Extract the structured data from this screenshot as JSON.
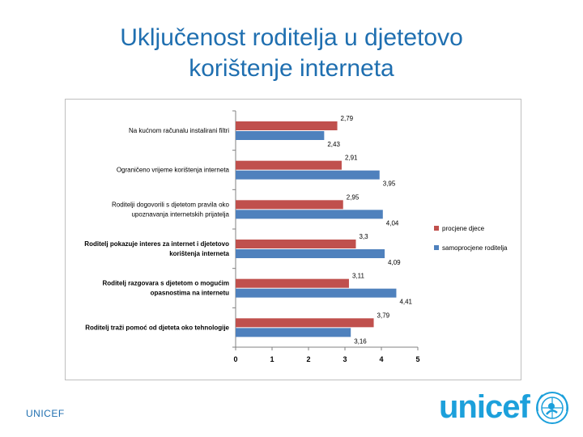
{
  "slide": {
    "title_line1": "Uključenost roditelja u djetetovo",
    "title_line2": "korištenje interneta",
    "footer": "UNICEF",
    "logo_text": "unicef"
  },
  "colors": {
    "title": "#1f6fb0",
    "series_children": "#c0504d",
    "series_parents": "#4f81bd",
    "logo": "#1ca0db"
  },
  "icons": {
    "logo_emblem": "unicef-emblem-icon"
  },
  "chart_data": {
    "type": "bar",
    "orientation": "horizontal",
    "categories": [
      [
        "Na kućnom računalu instalirani filtri"
      ],
      [
        "Ograničeno vrijeme korištenja interneta"
      ],
      [
        "Roditelji dogovorili s djetetom pravila oko",
        "upoznavanja internetskih prijatelja"
      ],
      [
        "Roditelj pokazuje interes za internet i djetetovo",
        "korištenja interneta"
      ],
      [
        "Roditelj razgovara s djetetom o mogućim",
        "opasnostima na internetu"
      ],
      [
        "Roditelj traži pomoć od djeteta oko tehnologije"
      ]
    ],
    "series": [
      {
        "name": "procjene djece",
        "values": [
          2.79,
          2.91,
          2.95,
          3.3,
          3.11,
          3.79
        ],
        "labels": [
          "2,79",
          "2,91",
          "2,95",
          "3,3",
          "3,11",
          "3,79"
        ]
      },
      {
        "name": "samoprocjene roditelja",
        "values": [
          2.43,
          3.95,
          4.04,
          4.09,
          4.41,
          3.16
        ],
        "labels": [
          "2,43",
          "3,95",
          "4,04",
          "4,09",
          "4,41",
          "3,16"
        ]
      }
    ],
    "xlim": [
      0,
      5
    ],
    "xticks": [
      "0",
      "1",
      "2",
      "3",
      "4",
      "5"
    ],
    "grid": false,
    "legend_position": "right"
  }
}
